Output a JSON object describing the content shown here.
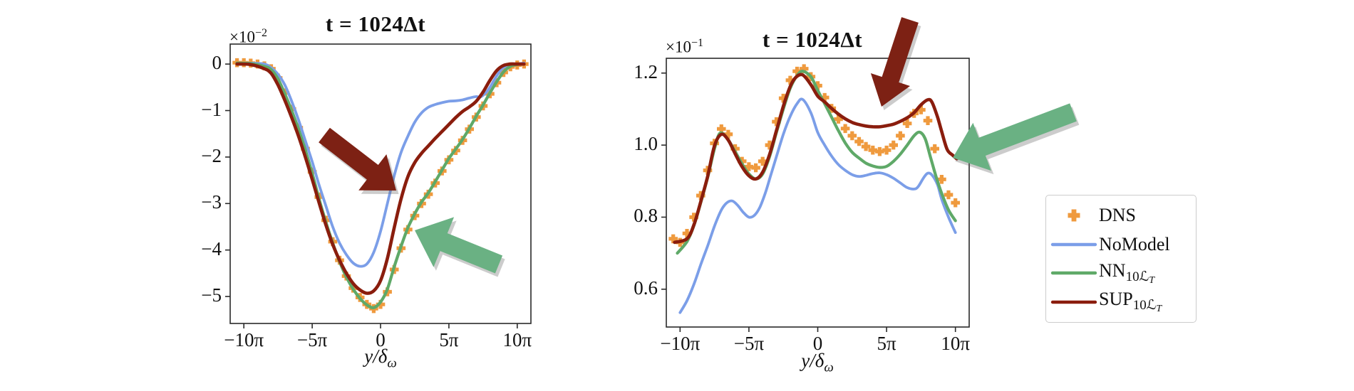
{
  "figure": {
    "background": "#ffffff",
    "colors": {
      "dns_orange": "#ef9a3e",
      "nomodel_blue": "#7b9ee8",
      "nn_green": "#5fa968",
      "sup_darkred": "#8a1d0d",
      "arrow_red": "#7d2114",
      "arrow_green": "#6ab183",
      "spine": "#2a2a2a",
      "legend_border": "#cccccc"
    },
    "legend": {
      "position": "right-of-plots",
      "items": [
        {
          "marker": "plus",
          "color": "#ef9a3e",
          "main": "DNS",
          "sub": "",
          "subsub": ""
        },
        {
          "marker": "line",
          "color": "#7b9ee8",
          "main": "NoModel",
          "sub": "",
          "subsub": ""
        },
        {
          "marker": "line",
          "color": "#5fa968",
          "main": "NN",
          "sub": "10ℒ",
          "subsub": "T"
        },
        {
          "marker": "line",
          "color": "#8a1d0d",
          "main": "SUP",
          "sub": "10ℒ",
          "subsub": "T"
        }
      ]
    },
    "annotations": [
      {
        "id": "arrow-left-sup",
        "shape": "arrow",
        "color": "#7d2114",
        "plot": 0
      },
      {
        "id": "arrow-left-nn",
        "shape": "arrow",
        "color": "#6ab183",
        "plot": 0
      },
      {
        "id": "arrow-right-sup",
        "shape": "arrow",
        "color": "#7d2114",
        "plot": 1
      },
      {
        "id": "arrow-right-nn",
        "shape": "arrow",
        "color": "#6ab183",
        "plot": 1
      }
    ]
  },
  "chart_data": [
    {
      "type": "line",
      "title": "t = 1024Δt",
      "offset_base": "×10",
      "offset_exp": "−2",
      "xlabel_main": "y/δ",
      "xlabel_sub": "ω",
      "x_unit": "pi",
      "xlim": [
        -11,
        11
      ],
      "ylim": [
        -5.58,
        0.43
      ],
      "grid": false,
      "x_ticks": [
        -10,
        -5,
        0,
        5,
        10
      ],
      "x_tick_labels": [
        "−10π",
        "−5π",
        "0",
        "5π",
        "10π"
      ],
      "y_ticks": [
        0,
        -1,
        -2,
        -3,
        -4,
        -5
      ],
      "y_tick_labels": [
        "0",
        "−1",
        "−2",
        "−3",
        "−4",
        "−5"
      ],
      "series": [
        {
          "name": "DNS",
          "style": "plus-markers",
          "color": "#ef9a3e",
          "x": [
            -10.5,
            -10,
            -9.5,
            -9,
            -8.5,
            -8,
            -7.5,
            -7,
            -6.5,
            -6,
            -5.5,
            -5,
            -4.5,
            -4,
            -3.5,
            -3,
            -2.5,
            -2,
            -1.5,
            -1,
            -0.5,
            0,
            0.5,
            1,
            1.5,
            2,
            2.5,
            3,
            3.5,
            4,
            4.5,
            5,
            5.5,
            6,
            6.5,
            7,
            7.5,
            8,
            8.5,
            9,
            9.5,
            10,
            10.5
          ],
          "y": [
            0.03,
            0.03,
            0.02,
            0.0,
            -0.04,
            -0.1,
            -0.3,
            -0.62,
            -0.97,
            -1.37,
            -1.82,
            -2.32,
            -2.86,
            -3.36,
            -3.82,
            -4.22,
            -4.56,
            -4.82,
            -5.02,
            -5.17,
            -5.26,
            -5.17,
            -4.9,
            -4.42,
            -3.96,
            -3.56,
            -3.26,
            -3.0,
            -2.8,
            -2.56,
            -2.3,
            -2.06,
            -1.86,
            -1.64,
            -1.4,
            -1.14,
            -0.9,
            -0.64,
            -0.4,
            -0.18,
            -0.06,
            -0.02,
            0.0
          ]
        },
        {
          "name": "NoModel",
          "style": "line",
          "color": "#7b9ee8",
          "x": [
            -10.5,
            -9.5,
            -8.5,
            -8,
            -7.5,
            -7,
            -6.5,
            -6,
            -5.5,
            -5,
            -4.5,
            -4,
            -3.5,
            -3,
            -2.5,
            -2,
            -1.5,
            -1,
            -0.5,
            0,
            0.5,
            1,
            1.5,
            2,
            2.5,
            3,
            3.5,
            4,
            4.5,
            5,
            5.5,
            6,
            6.5,
            7,
            7.3,
            7.7,
            8,
            8.4,
            8.8,
            9.2,
            10,
            10.5
          ],
          "y": [
            0.02,
            0.02,
            0.0,
            -0.08,
            -0.22,
            -0.45,
            -0.8,
            -1.2,
            -1.65,
            -2.1,
            -2.6,
            -3.05,
            -3.5,
            -3.85,
            -4.1,
            -4.28,
            -4.35,
            -4.3,
            -4.05,
            -3.6,
            -3.0,
            -2.4,
            -1.9,
            -1.55,
            -1.25,
            -1.05,
            -0.93,
            -0.87,
            -0.83,
            -0.8,
            -0.79,
            -0.77,
            -0.73,
            -0.7,
            -0.71,
            -0.62,
            -0.5,
            -0.3,
            -0.13,
            -0.04,
            0.0,
            0.02
          ]
        },
        {
          "name": "NN10LT",
          "style": "line",
          "color": "#5fa968",
          "x": [
            -10.5,
            -9.5,
            -8.5,
            -8,
            -7.5,
            -7,
            -6.5,
            -6,
            -5.5,
            -5,
            -4.5,
            -4,
            -3.5,
            -3,
            -2.5,
            -2,
            -1.5,
            -1,
            -0.5,
            0,
            0.5,
            1,
            1.5,
            2,
            2.5,
            3,
            3.5,
            4,
            4.5,
            5,
            5.5,
            6,
            6.5,
            7,
            7.5,
            8,
            8.5,
            9,
            9.5,
            10,
            10.5
          ],
          "y": [
            0.02,
            0.01,
            -0.05,
            -0.12,
            -0.32,
            -0.64,
            -1.0,
            -1.4,
            -1.85,
            -2.35,
            -2.9,
            -3.4,
            -3.85,
            -4.25,
            -4.58,
            -4.84,
            -5.04,
            -5.18,
            -5.24,
            -5.12,
            -4.84,
            -4.36,
            -3.92,
            -3.52,
            -3.22,
            -2.97,
            -2.77,
            -2.53,
            -2.28,
            -2.03,
            -1.83,
            -1.62,
            -1.38,
            -1.12,
            -0.88,
            -0.62,
            -0.38,
            -0.17,
            -0.05,
            -0.01,
            0.0
          ]
        },
        {
          "name": "SUP10LT",
          "style": "line",
          "color": "#8a1d0d",
          "x": [
            -10.5,
            -9.5,
            -8.5,
            -8,
            -7.5,
            -7,
            -6.5,
            -6,
            -5.5,
            -5,
            -4.5,
            -4,
            -3.5,
            -3,
            -2.5,
            -2,
            -1.5,
            -1,
            -0.5,
            0,
            0.5,
            1,
            1.5,
            2,
            2.5,
            3,
            3.5,
            4,
            4.5,
            5,
            5.5,
            6,
            6.5,
            7,
            7.5,
            8,
            8.5,
            9,
            9.5,
            10,
            10.5
          ],
          "y": [
            0.0,
            -0.01,
            -0.1,
            -0.2,
            -0.45,
            -0.78,
            -1.15,
            -1.55,
            -2.0,
            -2.48,
            -2.98,
            -3.46,
            -3.88,
            -4.22,
            -4.5,
            -4.72,
            -4.86,
            -4.93,
            -4.88,
            -4.66,
            -4.18,
            -3.52,
            -2.9,
            -2.42,
            -2.12,
            -1.92,
            -1.76,
            -1.6,
            -1.45,
            -1.3,
            -1.15,
            -1.02,
            -0.92,
            -0.8,
            -0.6,
            -0.35,
            -0.14,
            -0.03,
            0.0,
            0.0,
            0.0
          ]
        }
      ]
    },
    {
      "type": "line",
      "title": "t = 1024Δt",
      "offset_base": "×10",
      "offset_exp": "−1",
      "xlabel_main": "y/δ",
      "xlabel_sub": "ω",
      "x_unit": "pi",
      "xlim": [
        -11,
        11
      ],
      "ylim": [
        0.495,
        1.241
      ],
      "grid": false,
      "x_ticks": [
        -10,
        -5,
        0,
        5,
        10
      ],
      "x_tick_labels": [
        "−10π",
        "−5π",
        "0",
        "5π",
        "10π"
      ],
      "y_ticks": [
        1.2,
        1.0,
        0.8,
        0.6
      ],
      "y_tick_labels": [
        "1.2",
        "1.0",
        "0.8",
        "0.6"
      ],
      "series": [
        {
          "name": "DNS",
          "style": "plus-markers",
          "color": "#ef9a3e",
          "x": [
            -10.5,
            -10,
            -9.5,
            -9,
            -8.5,
            -8,
            -7.5,
            -7,
            -6.5,
            -6,
            -5.5,
            -5,
            -4.5,
            -4,
            -3.5,
            -3,
            -2.5,
            -2,
            -1.5,
            -1,
            -0.5,
            0,
            0.5,
            1,
            1.5,
            2,
            2.5,
            3,
            3.5,
            4,
            4.5,
            5,
            5.5,
            6,
            6.5,
            7,
            7.5,
            8,
            8.5,
            9,
            9.5,
            10
          ],
          "y": [
            0.74,
            0.73,
            0.755,
            0.8,
            0.86,
            0.93,
            1.005,
            1.045,
            1.03,
            0.99,
            0.955,
            0.94,
            0.937,
            0.955,
            1.0,
            1.065,
            1.13,
            1.18,
            1.205,
            1.212,
            1.19,
            1.165,
            1.132,
            1.102,
            1.072,
            1.046,
            1.026,
            1.01,
            0.996,
            0.986,
            0.982,
            0.986,
            1.0,
            1.026,
            1.06,
            1.088,
            1.098,
            1.068,
            0.99,
            0.905,
            0.862,
            0.84
          ]
        },
        {
          "name": "NoModel",
          "style": "line",
          "color": "#7b9ee8",
          "x": [
            -10,
            -9.5,
            -9,
            -8.5,
            -8,
            -7.5,
            -7,
            -6.6,
            -6.2,
            -5.8,
            -5.4,
            -5,
            -4.6,
            -4.2,
            -3.8,
            -3.4,
            -3,
            -2.5,
            -2,
            -1.5,
            -1.1,
            -0.5,
            0,
            0.5,
            1,
            1.5,
            2,
            2.5,
            3,
            3.5,
            4,
            4.5,
            5,
            5.5,
            6,
            6.5,
            7,
            7.3,
            7.7,
            8,
            8.3,
            8.7,
            9,
            9.5,
            10
          ],
          "y": [
            0.535,
            0.568,
            0.613,
            0.668,
            0.72,
            0.775,
            0.82,
            0.84,
            0.845,
            0.832,
            0.813,
            0.8,
            0.805,
            0.828,
            0.868,
            0.918,
            0.968,
            1.03,
            1.08,
            1.115,
            1.127,
            1.09,
            1.035,
            1.0,
            0.97,
            0.946,
            0.93,
            0.918,
            0.913,
            0.916,
            0.921,
            0.923,
            0.918,
            0.908,
            0.895,
            0.882,
            0.878,
            0.885,
            0.91,
            0.922,
            0.917,
            0.89,
            0.85,
            0.8,
            0.757
          ]
        },
        {
          "name": "NN10LT",
          "style": "line",
          "color": "#5fa968",
          "x": [
            -10.2,
            -9.5,
            -9,
            -8.5,
            -8,
            -7.5,
            -7.1,
            -6.6,
            -6,
            -5.5,
            -5,
            -4.5,
            -4,
            -3.5,
            -3,
            -2.5,
            -2,
            -1.5,
            -1.1,
            -0.5,
            0,
            0.5,
            1,
            1.5,
            2,
            2.5,
            3,
            3.5,
            4,
            4.5,
            5,
            5.5,
            6,
            6.5,
            7,
            7.4,
            7.8,
            8.2,
            8.6,
            9,
            9.5,
            10
          ],
          "y": [
            0.7,
            0.732,
            0.776,
            0.84,
            0.91,
            0.99,
            1.033,
            1.02,
            0.982,
            0.948,
            0.92,
            0.906,
            0.92,
            0.968,
            1.035,
            1.1,
            1.158,
            1.193,
            1.205,
            1.19,
            1.152,
            1.115,
            1.078,
            1.04,
            1.006,
            0.98,
            0.964,
            0.95,
            0.942,
            0.938,
            0.941,
            0.955,
            0.975,
            1.0,
            1.026,
            1.036,
            1.018,
            0.965,
            0.912,
            0.866,
            0.82,
            0.79
          ]
        },
        {
          "name": "SUP10LT",
          "style": "line",
          "color": "#8a1d0d",
          "x": [
            -10.4,
            -9.5,
            -9,
            -8.5,
            -8,
            -7.5,
            -7,
            -6.5,
            -6,
            -5.5,
            -5,
            -4.5,
            -4,
            -3.5,
            -3,
            -2.5,
            -2,
            -1.6,
            -1.1,
            -0.5,
            0,
            0.5,
            1,
            1.5,
            2,
            2.5,
            3,
            3.5,
            4,
            4.5,
            5,
            5.5,
            6,
            6.5,
            7,
            7.5,
            8,
            8.3,
            8.7,
            9,
            9.4,
            9.8,
            10.1
          ],
          "y": [
            0.73,
            0.74,
            0.778,
            0.843,
            0.913,
            0.998,
            1.03,
            1.014,
            0.976,
            0.94,
            0.915,
            0.906,
            0.925,
            0.974,
            1.04,
            1.108,
            1.163,
            1.188,
            1.195,
            1.168,
            1.136,
            1.12,
            1.102,
            1.086,
            1.073,
            1.063,
            1.057,
            1.053,
            1.051,
            1.051,
            1.054,
            1.058,
            1.066,
            1.076,
            1.09,
            1.112,
            1.126,
            1.119,
            1.078,
            1.038,
            0.988,
            0.972,
            0.962
          ]
        }
      ]
    }
  ]
}
